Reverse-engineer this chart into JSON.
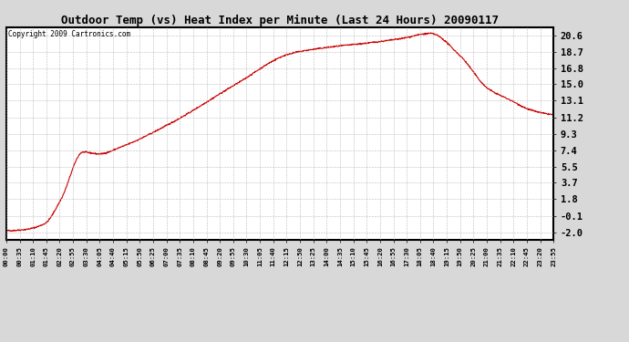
{
  "title": "Outdoor Temp (vs) Heat Index per Minute (Last 24 Hours) 20090117",
  "copyright": "Copyright 2009 Cartronics.com",
  "background_color": "#d8d8d8",
  "plot_bg_color": "#ffffff",
  "line_color": "#cc0000",
  "line_width": 0.8,
  "yticks": [
    -2.0,
    -0.1,
    1.8,
    3.7,
    5.5,
    7.4,
    9.3,
    11.2,
    13.1,
    15.0,
    16.8,
    18.7,
    20.6
  ],
  "ylim": [
    -2.8,
    21.5
  ],
  "xtick_labels": [
    "00:00",
    "00:35",
    "01:10",
    "01:45",
    "02:20",
    "02:55",
    "03:30",
    "04:05",
    "04:40",
    "05:15",
    "05:50",
    "06:25",
    "07:00",
    "07:35",
    "08:10",
    "08:45",
    "09:20",
    "09:55",
    "10:30",
    "11:05",
    "11:40",
    "12:15",
    "12:50",
    "13:25",
    "14:00",
    "14:35",
    "15:10",
    "15:45",
    "16:20",
    "16:55",
    "17:30",
    "18:05",
    "18:40",
    "19:15",
    "19:50",
    "20:25",
    "21:00",
    "21:35",
    "22:10",
    "22:45",
    "23:20",
    "23:55"
  ],
  "num_points": 1440,
  "kp_t": [
    0.0,
    0.03,
    0.07,
    0.1,
    0.14,
    0.17,
    0.21,
    0.3,
    0.42,
    0.52,
    0.6,
    0.66,
    0.72,
    0.775,
    0.83,
    0.88,
    0.92,
    0.96,
    1.0
  ],
  "kp_v": [
    -1.8,
    -1.7,
    -1.0,
    1.8,
    7.2,
    7.0,
    7.8,
    10.5,
    15.0,
    18.5,
    19.3,
    19.7,
    20.2,
    20.8,
    18.2,
    14.5,
    13.2,
    12.0,
    11.5
  ]
}
